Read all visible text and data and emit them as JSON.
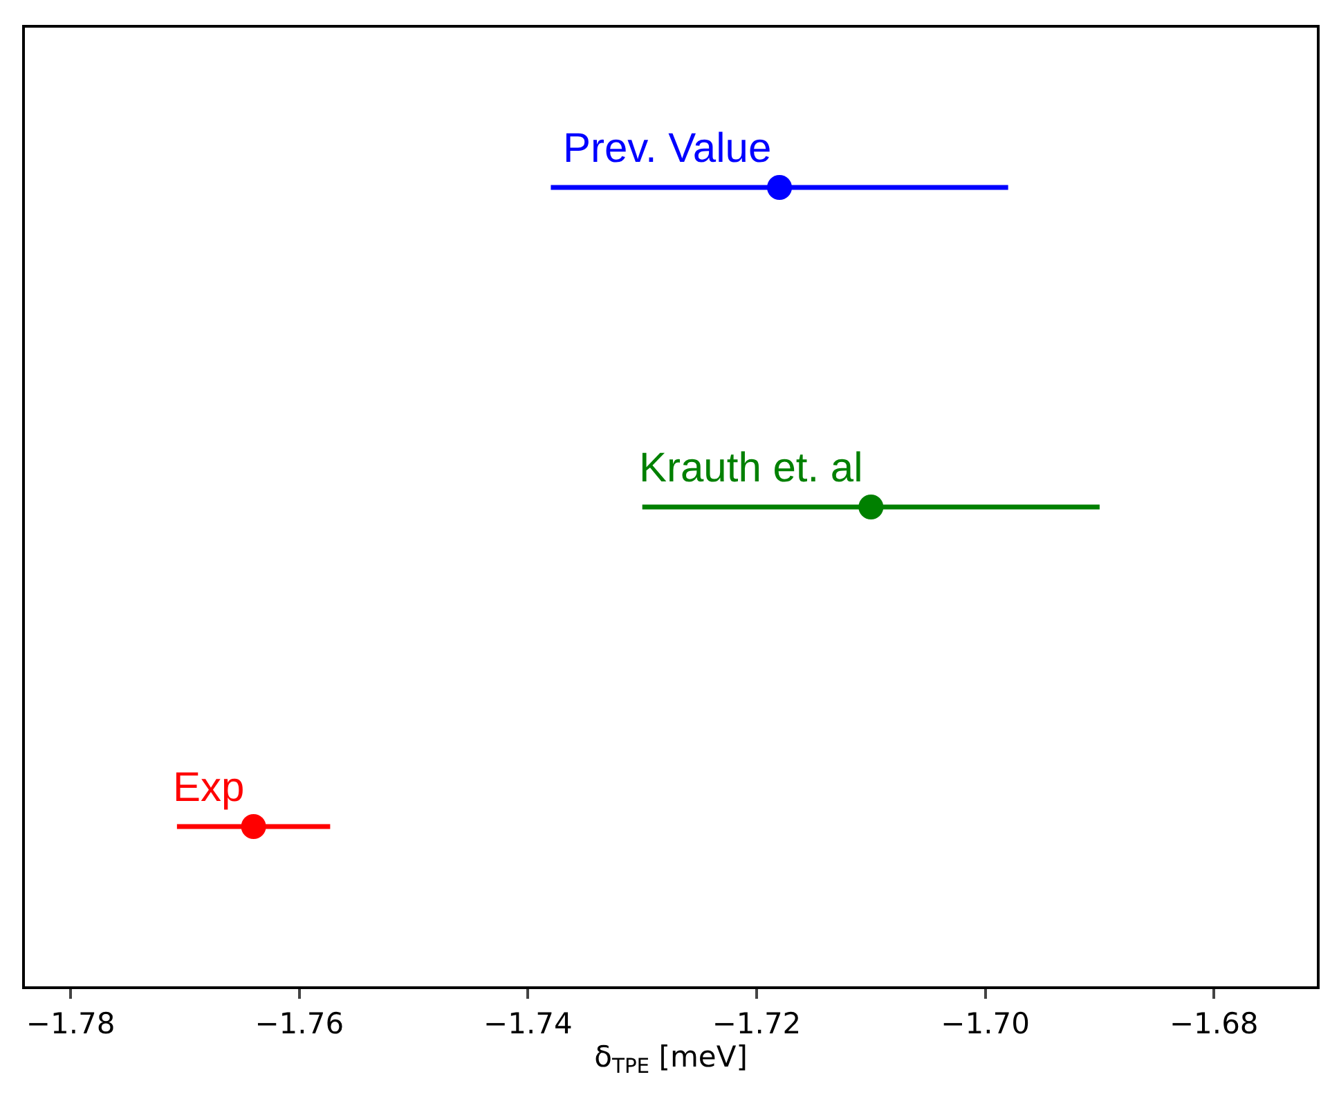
{
  "chart_data": {
    "type": "scatter",
    "orientation": "horizontal",
    "xlabel": "δ$_{TPE}$ [meV]",
    "categories": [
      null,
      null,
      null
    ],
    "xlim": [
      -1.784,
      -1.671
    ],
    "xticks": [
      {
        "value": -1.78,
        "label": "−1.78"
      },
      {
        "value": -1.76,
        "label": "−1.76"
      },
      {
        "value": -1.74,
        "label": "−1.74"
      },
      {
        "value": -1.72,
        "label": "−1.72"
      },
      {
        "value": -1.7,
        "label": "−1.70"
      },
      {
        "value": -1.68,
        "label": "−1.68"
      }
    ],
    "marker": "circle",
    "legend": false,
    "tick_labels": "x",
    "series": [
      {
        "name": "Prev. Value",
        "color": "#0000ff",
        "values": [
          -1.718,
          null,
          null
        ],
        "errors": [
          0.02,
          null,
          null
        ]
      },
      {
        "name": "Krauth et. al",
        "color": "#008000",
        "values": [
          null,
          -1.71,
          null
        ],
        "errors": [
          null,
          0.02,
          null
        ]
      },
      {
        "name": "Exp",
        "color": "#ff0000",
        "values": [
          null,
          null,
          -1.764
        ],
        "errors": [
          null,
          null,
          0.0067
        ]
      }
    ]
  }
}
